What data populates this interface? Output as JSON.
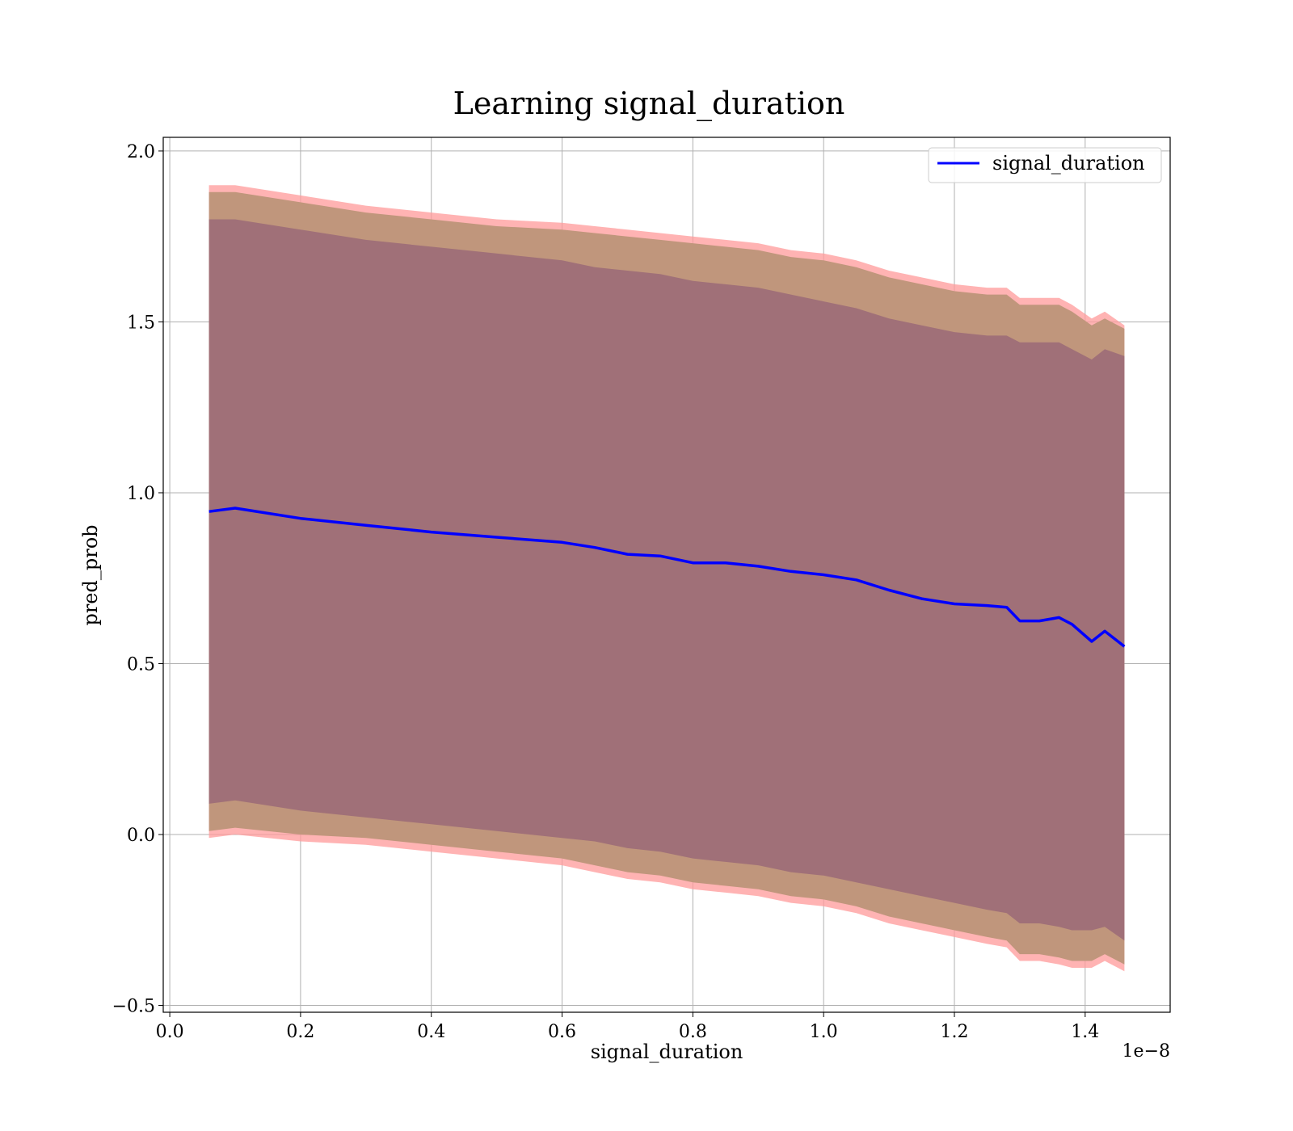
{
  "chart_data": {
    "type": "line",
    "title": "Learning signal_duration",
    "xlabel": "signal_duration",
    "ylabel": "pred_prob",
    "x_offset_label": "1e−8",
    "xlim": [
      -0.01,
      1.53
    ],
    "ylim": [
      -0.52,
      2.04
    ],
    "xticks": [
      0.0,
      0.2,
      0.4,
      0.6,
      0.8,
      1.0,
      1.2,
      1.4
    ],
    "xtick_labels": [
      "0.0",
      "0.2",
      "0.4",
      "0.6",
      "0.8",
      "1.0",
      "1.2",
      "1.4"
    ],
    "yticks": [
      -0.5,
      0.0,
      0.5,
      1.0,
      1.5,
      2.0
    ],
    "ytick_labels": [
      "−0.5",
      "0.0",
      "0.5",
      "1.0",
      "1.5",
      "2.0"
    ],
    "grid": true,
    "legend_position": "top-right",
    "series": [
      {
        "name": "signal_duration",
        "color": "#0000ff",
        "x": [
          0.06,
          0.1,
          0.2,
          0.3,
          0.4,
          0.5,
          0.6,
          0.65,
          0.7,
          0.75,
          0.8,
          0.85,
          0.9,
          0.95,
          1.0,
          1.05,
          1.1,
          1.15,
          1.2,
          1.25,
          1.28,
          1.3,
          1.33,
          1.36,
          1.38,
          1.41,
          1.43,
          1.46
        ],
        "y": [
          0.945,
          0.955,
          0.925,
          0.905,
          0.885,
          0.87,
          0.855,
          0.84,
          0.82,
          0.815,
          0.795,
          0.795,
          0.785,
          0.77,
          0.76,
          0.745,
          0.715,
          0.69,
          0.675,
          0.67,
          0.665,
          0.625,
          0.625,
          0.635,
          0.615,
          0.565,
          0.595,
          0.55
        ]
      }
    ],
    "bands": [
      {
        "description_color": "#ff8080",
        "color": "#ff9999",
        "upper": [
          1.9,
          1.9,
          1.87,
          1.84,
          1.82,
          1.8,
          1.79,
          1.78,
          1.77,
          1.76,
          1.75,
          1.74,
          1.73,
          1.71,
          1.7,
          1.68,
          1.65,
          1.63,
          1.61,
          1.6,
          1.6,
          1.57,
          1.57,
          1.57,
          1.55,
          1.51,
          1.53,
          1.49
        ],
        "lower": [
          -0.01,
          0.0,
          -0.02,
          -0.03,
          -0.05,
          -0.07,
          -0.09,
          -0.11,
          -0.13,
          -0.14,
          -0.16,
          -0.17,
          -0.18,
          -0.2,
          -0.21,
          -0.23,
          -0.26,
          -0.28,
          -0.3,
          -0.32,
          -0.33,
          -0.37,
          -0.37,
          -0.38,
          -0.39,
          -0.39,
          -0.37,
          -0.4
        ]
      },
      {
        "color": "#c0967c",
        "upper": [
          1.88,
          1.88,
          1.85,
          1.82,
          1.8,
          1.78,
          1.77,
          1.76,
          1.75,
          1.74,
          1.73,
          1.72,
          1.71,
          1.69,
          1.68,
          1.66,
          1.63,
          1.61,
          1.59,
          1.58,
          1.58,
          1.55,
          1.55,
          1.55,
          1.53,
          1.49,
          1.51,
          1.48
        ],
        "lower": [
          0.01,
          0.02,
          0.0,
          -0.01,
          -0.03,
          -0.05,
          -0.07,
          -0.09,
          -0.11,
          -0.12,
          -0.14,
          -0.15,
          -0.16,
          -0.18,
          -0.19,
          -0.21,
          -0.24,
          -0.26,
          -0.28,
          -0.3,
          -0.31,
          -0.35,
          -0.35,
          -0.36,
          -0.37,
          -0.37,
          -0.35,
          -0.38
        ]
      },
      {
        "color": "#a07078",
        "upper": [
          1.8,
          1.8,
          1.77,
          1.74,
          1.72,
          1.7,
          1.68,
          1.66,
          1.65,
          1.64,
          1.62,
          1.61,
          1.6,
          1.58,
          1.56,
          1.54,
          1.51,
          1.49,
          1.47,
          1.46,
          1.46,
          1.44,
          1.44,
          1.44,
          1.42,
          1.39,
          1.42,
          1.4
        ],
        "lower": [
          0.09,
          0.1,
          0.07,
          0.05,
          0.03,
          0.01,
          -0.01,
          -0.02,
          -0.04,
          -0.05,
          -0.07,
          -0.08,
          -0.09,
          -0.11,
          -0.12,
          -0.14,
          -0.16,
          -0.18,
          -0.2,
          -0.22,
          -0.23,
          -0.26,
          -0.26,
          -0.27,
          -0.28,
          -0.28,
          -0.27,
          -0.31
        ]
      }
    ]
  }
}
